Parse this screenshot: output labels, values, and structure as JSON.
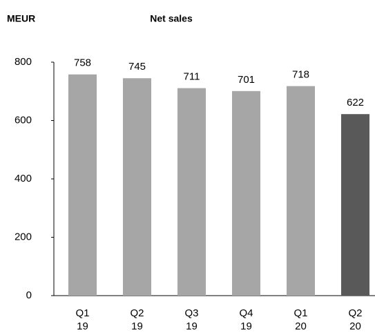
{
  "chart_data": {
    "type": "bar",
    "title": "Net sales",
    "y_label": "MEUR",
    "categories": [
      "Q1 19",
      "Q2 19",
      "Q3 19",
      "Q4 19",
      "Q1 20",
      "Q2 20"
    ],
    "values": [
      758,
      745,
      711,
      701,
      718,
      622
    ],
    "colors": [
      "#a6a6a6",
      "#a6a6a6",
      "#a6a6a6",
      "#a6a6a6",
      "#a6a6a6",
      "#595959"
    ],
    "ylim": [
      0,
      800
    ],
    "yticks": [
      0,
      200,
      400,
      600,
      800
    ],
    "grid": false
  }
}
